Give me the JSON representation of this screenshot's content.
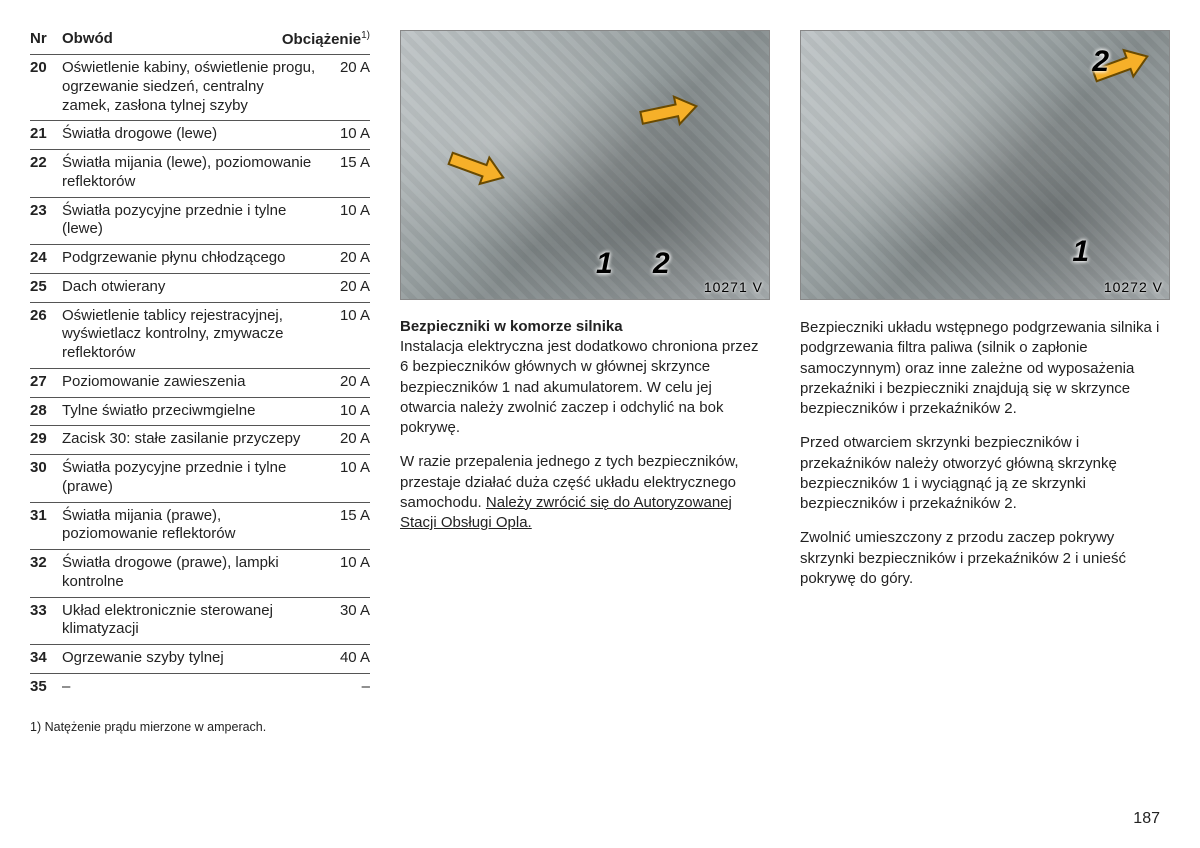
{
  "table": {
    "headers": {
      "nr": "Nr",
      "obwod": "Obwód",
      "load": "Obciążenie",
      "sup": "1)"
    },
    "rows": [
      {
        "nr": "20",
        "obwod": "Oświetlenie kabiny, oświetlenie progu, ogrzewanie siedzeń, centralny zamek, zasłona tylnej szyby",
        "load": "20 A"
      },
      {
        "nr": "21",
        "obwod": "Światła drogowe (lewe)",
        "load": "10 A"
      },
      {
        "nr": "22",
        "obwod": "Światła mijania (lewe), poziomowanie reflektorów",
        "load": "15 A"
      },
      {
        "nr": "23",
        "obwod": "Światła pozycyjne przednie i tylne (lewe)",
        "load": "10 A"
      },
      {
        "nr": "24",
        "obwod": "Podgrzewanie płynu chłodzącego",
        "load": "20 A"
      },
      {
        "nr": "25",
        "obwod": "Dach otwierany",
        "load": "20 A"
      },
      {
        "nr": "26",
        "obwod": "Oświetlenie tablicy rejestracyjnej, wyświetlacz kontrolny, zmywacze reflektorów",
        "load": "10 A"
      },
      {
        "nr": "27",
        "obwod": "Poziomowanie zawieszenia",
        "load": "20 A"
      },
      {
        "nr": "28",
        "obwod": "Tylne światło przeciwmgielne",
        "load": "10 A"
      },
      {
        "nr": "29",
        "obwod": "Zacisk 30: stałe zasilanie przyczepy",
        "load": "20 A"
      },
      {
        "nr": "30",
        "obwod": "Światła pozycyjne przednie i tylne (prawe)",
        "load": "10 A"
      },
      {
        "nr": "31",
        "obwod": "Światła mijania (prawe), poziomowanie reflektorów",
        "load": "15 A"
      },
      {
        "nr": "32",
        "obwod": "Światła drogowe (prawe), lampki kontrolne",
        "load": "10 A"
      },
      {
        "nr": "33",
        "obwod": "Układ elektronicznie sterowanej klimatyzacji",
        "load": "30 A"
      },
      {
        "nr": "34",
        "obwod": "Ogrzewanie szyby tylnej",
        "load": "40 A"
      },
      {
        "nr": "35",
        "obwod": "–",
        "load": "–"
      }
    ],
    "footnote": "1) Natężenie prądu mierzone w amperach."
  },
  "mid": {
    "image_tag": "10271 V",
    "callouts": {
      "c1": "1",
      "c2": "2"
    },
    "heading": "Bezpieczniki w komorze silnika",
    "p1": "Instalacja elektryczna jest dodatkowo chroniona przez 6 bezpieczników głównych w głównej skrzynce bezpieczników 1 nad akumulatorem. W celu jej otwarcia należy zwolnić zaczep i odchylić na bok pokrywę.",
    "p2a": "W razie przepalenia jednego z tych bezpieczników, przestaje działać duża część układu elektrycznego samochodu. ",
    "p2b": "Należy zwrócić się do Autoryzowanej Stacji Obsługi Opla."
  },
  "right": {
    "image_tag": "10272 V",
    "callouts": {
      "c1": "1",
      "c2": "2"
    },
    "p1": "Bezpieczniki układu wstępnego podgrzewania silnika i podgrzewania filtra paliwa (silnik o zapłonie samoczynnym) oraz inne zależne od wyposażenia przekaźniki i bezpieczniki znajdują się w skrzynce bezpieczników i przekaźników 2.",
    "p2": "Przed otwarciem skrzynki bezpieczników i przekaźników należy otworzyć główną skrzynkę bezpieczników 1 i wyciągnąć ją ze skrzynki bezpieczników i przekaźników 2.",
    "p3": "Zwolnić umieszczony z przodu zaczep pokrywy skrzynki bezpieczników i przekaźników 2 i unieść pokrywę do góry."
  },
  "page_number": "187",
  "arrow_fill": "#f6b029",
  "arrow_stroke": "#6a4a00"
}
